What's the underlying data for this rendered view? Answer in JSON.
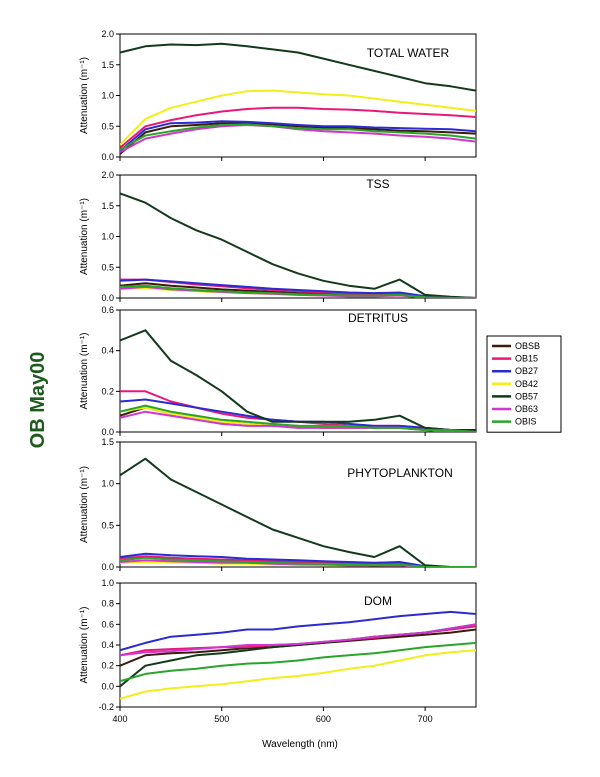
{
  "figure_title": "OB May00",
  "title_color": "#1e5a1e",
  "chart_data": {
    "type": "line",
    "xlabel": "Wavelength (nm)",
    "xlim": [
      400,
      750
    ],
    "xticks": [
      400,
      500,
      600,
      700
    ],
    "legend": {
      "placement": "right",
      "entries": [
        {
          "name": "OBSB",
          "color": "#3a1c0c"
        },
        {
          "name": "OB15",
          "color": "#e8177a"
        },
        {
          "name": "OB27",
          "color": "#2b2bd0"
        },
        {
          "name": "OB42",
          "color": "#f2ee1a"
        },
        {
          "name": "OB57",
          "color": "#123a1a"
        },
        {
          "name": "OB63",
          "color": "#d236d2"
        },
        {
          "name": "OBIS",
          "color": "#2aa52a"
        }
      ]
    },
    "panels": [
      {
        "title": "TOTAL WATER",
        "ylabel": "Attenuation (m⁻¹)",
        "ylim": [
          0,
          2
        ],
        "yticks": [
          "0.0",
          "0.5",
          "1.0",
          "1.5",
          "2.0"
        ],
        "x": [
          400,
          425,
          450,
          475,
          500,
          525,
          550,
          575,
          600,
          625,
          650,
          675,
          700,
          725,
          750
        ],
        "series": [
          {
            "name": "OBSB",
            "values": [
              0.05,
              0.4,
              0.5,
              0.52,
              0.55,
              0.55,
              0.53,
              0.5,
              0.48,
              0.47,
              0.45,
              0.43,
              0.42,
              0.4,
              0.38
            ]
          },
          {
            "name": "OB15",
            "values": [
              0.15,
              0.5,
              0.6,
              0.68,
              0.74,
              0.78,
              0.8,
              0.8,
              0.78,
              0.77,
              0.75,
              0.72,
              0.7,
              0.68,
              0.65
            ]
          },
          {
            "name": "OB27",
            "values": [
              0.1,
              0.45,
              0.55,
              0.56,
              0.58,
              0.57,
              0.55,
              0.52,
              0.5,
              0.5,
              0.48,
              0.47,
              0.46,
              0.45,
              0.42
            ]
          },
          {
            "name": "OB42",
            "values": [
              0.2,
              0.62,
              0.8,
              0.9,
              1.0,
              1.07,
              1.08,
              1.05,
              1.02,
              1.0,
              0.95,
              0.9,
              0.85,
              0.8,
              0.75
            ]
          },
          {
            "name": "OB57",
            "values": [
              1.7,
              1.8,
              1.83,
              1.82,
              1.84,
              1.8,
              1.75,
              1.7,
              1.6,
              1.5,
              1.4,
              1.3,
              1.2,
              1.15,
              1.08
            ]
          },
          {
            "name": "OB63",
            "values": [
              0.08,
              0.3,
              0.38,
              0.45,
              0.5,
              0.52,
              0.5,
              0.45,
              0.42,
              0.4,
              0.38,
              0.35,
              0.33,
              0.3,
              0.25
            ]
          },
          {
            "name": "OBIS",
            "values": [
              0.12,
              0.35,
              0.42,
              0.48,
              0.52,
              0.53,
              0.5,
              0.47,
              0.45,
              0.45,
              0.42,
              0.4,
              0.38,
              0.35,
              0.3
            ]
          }
        ]
      },
      {
        "title": "TSS",
        "ylabel": "Attenuation (m⁻¹)",
        "ylim": [
          0,
          2
        ],
        "yticks": [
          "0.0",
          "0.5",
          "1.0",
          "1.5",
          "2.0"
        ],
        "x": [
          400,
          425,
          450,
          475,
          500,
          525,
          550,
          575,
          600,
          625,
          650,
          675,
          700,
          725,
          750
        ],
        "series": [
          {
            "name": "OBSB",
            "values": [
              0.2,
              0.24,
              0.2,
              0.17,
              0.14,
              0.12,
              0.1,
              0.08,
              0.07,
              0.06,
              0.05,
              0.06,
              0.02,
              0.01,
              0.0
            ]
          },
          {
            "name": "OB15",
            "values": [
              0.3,
              0.3,
              0.26,
              0.22,
              0.19,
              0.16,
              0.13,
              0.11,
              0.09,
              0.07,
              0.06,
              0.07,
              0.02,
              0.01,
              0.0
            ]
          },
          {
            "name": "OB27",
            "values": [
              0.28,
              0.3,
              0.27,
              0.24,
              0.21,
              0.18,
              0.15,
              0.13,
              0.11,
              0.09,
              0.08,
              0.09,
              0.03,
              0.01,
              0.0
            ]
          },
          {
            "name": "OB42",
            "values": [
              0.15,
              0.16,
              0.13,
              0.11,
              0.09,
              0.08,
              0.06,
              0.05,
              0.04,
              0.03,
              0.03,
              0.04,
              0.01,
              0.0,
              0.0
            ]
          },
          {
            "name": "OB57",
            "values": [
              1.7,
              1.55,
              1.3,
              1.1,
              0.95,
              0.75,
              0.55,
              0.4,
              0.28,
              0.2,
              0.15,
              0.3,
              0.05,
              0.02,
              0.0
            ]
          },
          {
            "name": "OB63",
            "values": [
              0.15,
              0.18,
              0.14,
              0.12,
              0.1,
              0.08,
              0.07,
              0.05,
              0.04,
              0.03,
              0.03,
              0.04,
              0.01,
              0.0,
              0.0
            ]
          },
          {
            "name": "OBIS",
            "values": [
              0.18,
              0.2,
              0.16,
              0.13,
              0.11,
              0.09,
              0.08,
              0.06,
              0.05,
              0.04,
              0.04,
              0.05,
              0.01,
              0.0,
              0.0
            ]
          }
        ]
      },
      {
        "title": "DETRITUS",
        "ylabel": "Attenuation (m⁻¹)",
        "ylim": [
          0,
          0.6
        ],
        "yticks": [
          "0.0",
          "0.2",
          "0.4",
          "0.6"
        ],
        "x": [
          400,
          425,
          450,
          475,
          500,
          525,
          550,
          575,
          600,
          625,
          650,
          675,
          700,
          725,
          750
        ],
        "series": [
          {
            "name": "OBSB",
            "values": [
              0.08,
              0.12,
              0.09,
              0.07,
              0.05,
              0.04,
              0.03,
              0.03,
              0.02,
              0.02,
              0.02,
              0.02,
              0.01,
              0.01,
              0.0
            ]
          },
          {
            "name": "OB15",
            "values": [
              0.2,
              0.2,
              0.15,
              0.12,
              0.09,
              0.07,
              0.06,
              0.05,
              0.04,
              0.03,
              0.03,
              0.03,
              0.02,
              0.01,
              0.0
            ]
          },
          {
            "name": "OB27",
            "values": [
              0.15,
              0.16,
              0.14,
              0.12,
              0.1,
              0.08,
              0.06,
              0.05,
              0.05,
              0.04,
              0.03,
              0.03,
              0.02,
              0.01,
              0.0
            ]
          },
          {
            "name": "OB42",
            "values": [
              0.1,
              0.12,
              0.09,
              0.07,
              0.05,
              0.04,
              0.03,
              0.03,
              0.02,
              0.02,
              0.02,
              0.02,
              0.01,
              0.0,
              0.0
            ]
          },
          {
            "name": "OB57",
            "values": [
              0.45,
              0.5,
              0.35,
              0.28,
              0.2,
              0.1,
              0.05,
              0.05,
              0.05,
              0.05,
              0.06,
              0.08,
              0.02,
              0.01,
              0.01
            ]
          },
          {
            "name": "OB63",
            "values": [
              0.07,
              0.1,
              0.08,
              0.06,
              0.04,
              0.03,
              0.03,
              0.02,
              0.02,
              0.02,
              0.02,
              0.02,
              0.01,
              0.0,
              0.0
            ]
          },
          {
            "name": "OBIS",
            "values": [
              0.1,
              0.13,
              0.1,
              0.08,
              0.06,
              0.05,
              0.04,
              0.03,
              0.03,
              0.03,
              0.02,
              0.02,
              0.01,
              0.01,
              0.0
            ]
          }
        ]
      },
      {
        "title": "PHYTOPLANKTON",
        "ylabel": "Attenuation (m⁻¹)",
        "ylim": [
          0,
          1.5
        ],
        "yticks": [
          "0.0",
          "0.5",
          "1.0",
          "1.5"
        ],
        "x": [
          400,
          425,
          450,
          475,
          500,
          525,
          550,
          575,
          600,
          625,
          650,
          675,
          700,
          725,
          750
        ],
        "series": [
          {
            "name": "OBSB",
            "values": [
              0.1,
              0.12,
              0.1,
              0.09,
              0.08,
              0.07,
              0.06,
              0.05,
              0.04,
              0.03,
              0.02,
              0.03,
              0.0,
              0.0,
              0.0
            ]
          },
          {
            "name": "OB15",
            "values": [
              0.1,
              0.13,
              0.11,
              0.1,
              0.09,
              0.08,
              0.07,
              0.06,
              0.05,
              0.04,
              0.03,
              0.04,
              0.0,
              0.0,
              0.0
            ]
          },
          {
            "name": "OB27",
            "values": [
              0.12,
              0.16,
              0.14,
              0.13,
              0.12,
              0.1,
              0.09,
              0.08,
              0.07,
              0.06,
              0.05,
              0.06,
              0.01,
              0.0,
              0.0
            ]
          },
          {
            "name": "OB42",
            "values": [
              0.05,
              0.06,
              0.05,
              0.05,
              0.04,
              0.04,
              0.03,
              0.03,
              0.02,
              0.02,
              0.02,
              0.02,
              0.0,
              0.0,
              0.0
            ]
          },
          {
            "name": "OB57",
            "values": [
              1.1,
              1.3,
              1.05,
              0.9,
              0.75,
              0.6,
              0.45,
              0.35,
              0.25,
              0.18,
              0.12,
              0.25,
              0.02,
              0.0,
              0.0
            ]
          },
          {
            "name": "OB63",
            "values": [
              0.06,
              0.08,
              0.07,
              0.06,
              0.05,
              0.05,
              0.04,
              0.03,
              0.03,
              0.02,
              0.02,
              0.02,
              0.0,
              0.0,
              0.0
            ]
          },
          {
            "name": "OBIS",
            "values": [
              0.08,
              0.11,
              0.09,
              0.08,
              0.07,
              0.06,
              0.05,
              0.04,
              0.04,
              0.03,
              0.02,
              0.03,
              0.0,
              0.0,
              0.0
            ]
          }
        ]
      },
      {
        "title": "DOM",
        "ylabel": "Attenuation (m⁻¹)",
        "ylim": [
          -0.2,
          1.0
        ],
        "yticks": [
          "-0.2",
          "0.0",
          "0.2",
          "0.4",
          "0.6",
          "0.8",
          "1.0"
        ],
        "x": [
          400,
          425,
          450,
          475,
          500,
          525,
          550,
          575,
          600,
          625,
          650,
          675,
          700,
          725,
          750
        ],
        "series": [
          {
            "name": "OBSB",
            "values": [
              0.2,
              0.3,
              0.32,
              0.33,
              0.35,
              0.37,
              0.38,
              0.4,
              0.42,
              0.44,
              0.46,
              0.48,
              0.5,
              0.52,
              0.55
            ]
          },
          {
            "name": "OB15",
            "values": [
              0.3,
              0.35,
              0.36,
              0.37,
              0.38,
              0.38,
              0.4,
              0.41,
              0.43,
              0.45,
              0.47,
              0.5,
              0.52,
              0.55,
              0.58
            ]
          },
          {
            "name": "OB27",
            "values": [
              0.35,
              0.42,
              0.48,
              0.5,
              0.52,
              0.55,
              0.55,
              0.58,
              0.6,
              0.62,
              0.65,
              0.68,
              0.7,
              0.72,
              0.7
            ]
          },
          {
            "name": "OB42",
            "values": [
              -0.12,
              -0.05,
              -0.02,
              0.0,
              0.02,
              0.05,
              0.08,
              0.1,
              0.13,
              0.17,
              0.2,
              0.25,
              0.3,
              0.33,
              0.35
            ]
          },
          {
            "name": "OB57",
            "values": [
              0.0,
              0.2,
              0.25,
              0.3,
              0.32,
              0.35,
              0.38,
              0.4,
              0.42,
              0.45,
              0.48,
              0.5,
              0.52,
              0.56,
              0.6
            ]
          },
          {
            "name": "OB63",
            "values": [
              0.3,
              0.33,
              0.34,
              0.36,
              0.38,
              0.4,
              0.4,
              0.41,
              0.43,
              0.45,
              0.48,
              0.5,
              0.52,
              0.56,
              0.6
            ]
          },
          {
            "name": "OBIS",
            "values": [
              0.05,
              0.12,
              0.15,
              0.17,
              0.2,
              0.22,
              0.23,
              0.25,
              0.28,
              0.3,
              0.32,
              0.35,
              0.38,
              0.4,
              0.42
            ]
          }
        ]
      }
    ]
  }
}
